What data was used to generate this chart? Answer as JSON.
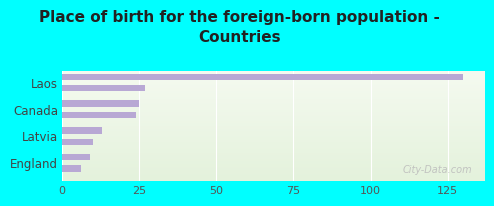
{
  "title": "Place of birth for the foreign-born population -\nCountries",
  "background_color": "#00ffff",
  "bar_color": "#b8a8d4",
  "bars": [
    {
      "label": "Laos",
      "values": [
        130,
        27
      ]
    },
    {
      "label": "Canada",
      "values": [
        25,
        24
      ]
    },
    {
      "label": "Latvia",
      "values": [
        13,
        10
      ]
    },
    {
      "label": "England",
      "values": [
        9,
        6
      ]
    }
  ],
  "xlim": [
    0,
    137
  ],
  "xticks": [
    0,
    25,
    50,
    75,
    100,
    125
  ],
  "ylabel_fontsize": 8.5,
  "title_fontsize": 11,
  "watermark": "City-Data.com",
  "plot_bg_top": "#e4f2dc",
  "plot_bg_bottom": "#f2f7ec"
}
